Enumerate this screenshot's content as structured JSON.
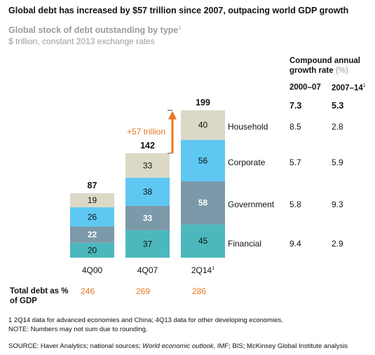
{
  "title": "Global debt has increased by $57 trillion since 2007, outpacing world GDP growth",
  "subtitle": "Global stock of debt outstanding by type",
  "subtitle_sup": "1",
  "subtitle2": "$ trillion, constant 2013 exchange rates",
  "annotation": "+57 trillion",
  "cagr": {
    "heading": "Compound annual growth rate",
    "unit": "(%)",
    "col1": "2000–07",
    "col2": "2007–14",
    "col2_sup": "1",
    "total1": "7.3",
    "total2": "5.3",
    "rows": [
      {
        "label": "Household",
        "v1": "8.5",
        "v2": "2.8"
      },
      {
        "label": "Corporate",
        "v1": "5.7",
        "v2": "5.9"
      },
      {
        "label": "Government",
        "v1": "5.8",
        "v2": "9.3"
      },
      {
        "label": "Financial",
        "v1": "9.4",
        "v2": "2.9"
      }
    ]
  },
  "chart_data": {
    "type": "bar",
    "stacked": true,
    "categories": [
      "4Q00",
      "4Q07",
      "2Q14"
    ],
    "category_sups": [
      "",
      "",
      "1"
    ],
    "totals": [
      87,
      142,
      199
    ],
    "series": [
      {
        "name": "Financial",
        "values": [
          20,
          37,
          45
        ],
        "color": "#4cb8bd"
      },
      {
        "name": "Government",
        "values": [
          22,
          33,
          58
        ],
        "color": "#7b99a8"
      },
      {
        "name": "Corporate",
        "values": [
          26,
          38,
          56
        ],
        "color": "#5ec8f2"
      },
      {
        "name": "Household",
        "values": [
          19,
          33,
          40
        ],
        "color": "#dcd8c6"
      }
    ],
    "title": "Global stock of debt outstanding by type",
    "ylabel": "$ trillion, constant 2013 exchange rates"
  },
  "total_debt_label": "Total debt as % of GDP",
  "gdp_values": [
    "246",
    "269",
    "286"
  ],
  "accent_color": "#e87722",
  "footnote1": "1  2Q14 data for advanced economies and China; 4Q13 data for other developing economies.",
  "footnote2": "NOTE: Numbers may not sum due to rounding.",
  "source_prefix": "SOURCE:  Haver Analytics; national sources; ",
  "source_italic": "World economic outlook",
  "source_suffix": ", IMF; BIS; McKinsey Global Institute analysis"
}
